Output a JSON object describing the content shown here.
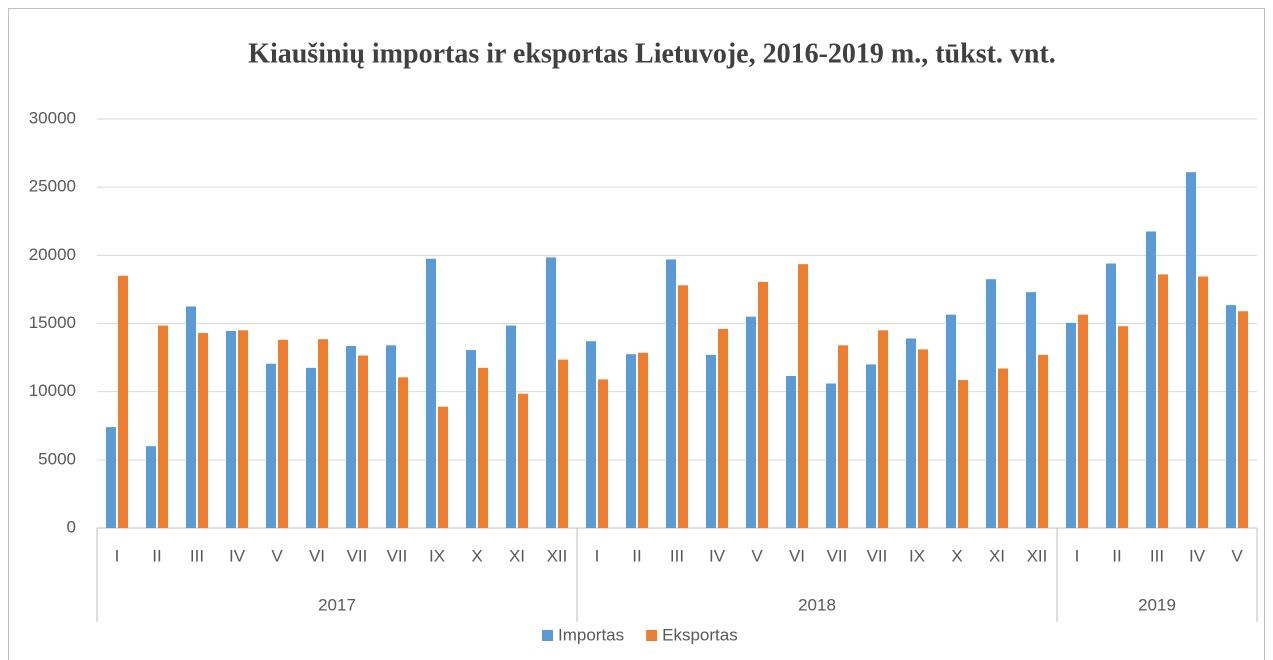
{
  "chart_data": {
    "type": "bar",
    "title": "Kiaušinių importas ir eksportas Lietuvoje, 2016-2019 m., tūkst. vnt.",
    "categories": [
      "I",
      "II",
      "III",
      "IV",
      "V",
      "VI",
      "VII",
      "VII",
      "IX",
      "X",
      "XI",
      "XII",
      "I",
      "II",
      "III",
      "IV",
      "V",
      "VI",
      "VII",
      "VII",
      "IX",
      "X",
      "XI",
      "XII",
      "I",
      "II",
      "III",
      "IV",
      "V"
    ],
    "groups": [
      {
        "name": "2017",
        "size": 12
      },
      {
        "name": "2018",
        "size": 12
      },
      {
        "name": "2019",
        "size": 5
      }
    ],
    "series": [
      {
        "name": "Importas",
        "color": "#5b9bd5",
        "values": [
          7400,
          6000,
          16250,
          14450,
          12050,
          11750,
          13350,
          13400,
          19750,
          13050,
          14850,
          19850,
          13700,
          12750,
          19700,
          12700,
          15500,
          11150,
          10600,
          12000,
          13900,
          15650,
          18250,
          17300,
          15050,
          19400,
          21750,
          26100,
          16350
        ]
      },
      {
        "name": "Eksportas",
        "color": "#ed7d31",
        "values": [
          18500,
          14850,
          14300,
          14500,
          13800,
          13850,
          12650,
          11050,
          8900,
          11750,
          9850,
          12350,
          10900,
          12850,
          17800,
          14600,
          18050,
          19350,
          13400,
          14500,
          13100,
          10850,
          11700,
          12700,
          15650,
          14800,
          18600,
          18450,
          15900
        ]
      }
    ],
    "ylim": [
      0,
      30000
    ],
    "yticks": [
      0,
      5000,
      10000,
      15000,
      20000,
      25000,
      30000
    ],
    "grid": true,
    "legend": "bottom"
  }
}
